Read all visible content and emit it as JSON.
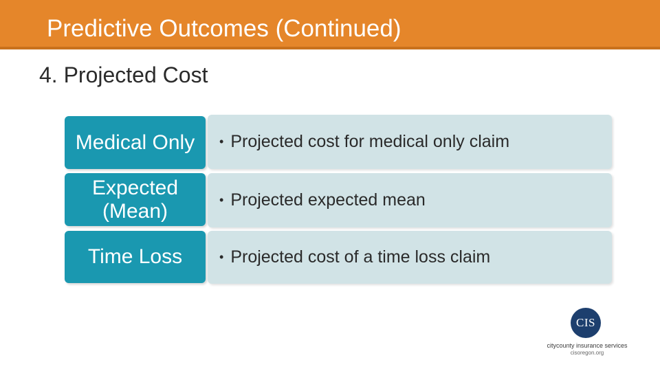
{
  "header": {
    "title": "Predictive Outcomes (Continued)"
  },
  "subtitle": "4. Projected Cost",
  "rows": [
    {
      "label": "Medical Only",
      "description": "Projected cost for medical only claim"
    },
    {
      "label": "Expected (Mean)",
      "description": "Projected expected mean"
    },
    {
      "label": "Time Loss",
      "description": "Projected cost of a time loss claim"
    }
  ],
  "bullet": "•",
  "logo": {
    "initials": "CIS",
    "name": "citycounty insurance services",
    "url": "cisoregon.org"
  },
  "colors": {
    "header": "#e5862a",
    "label_box": "#1a98b0",
    "desc_box": "#d1e3e6",
    "logo": "#1d3f6e"
  }
}
